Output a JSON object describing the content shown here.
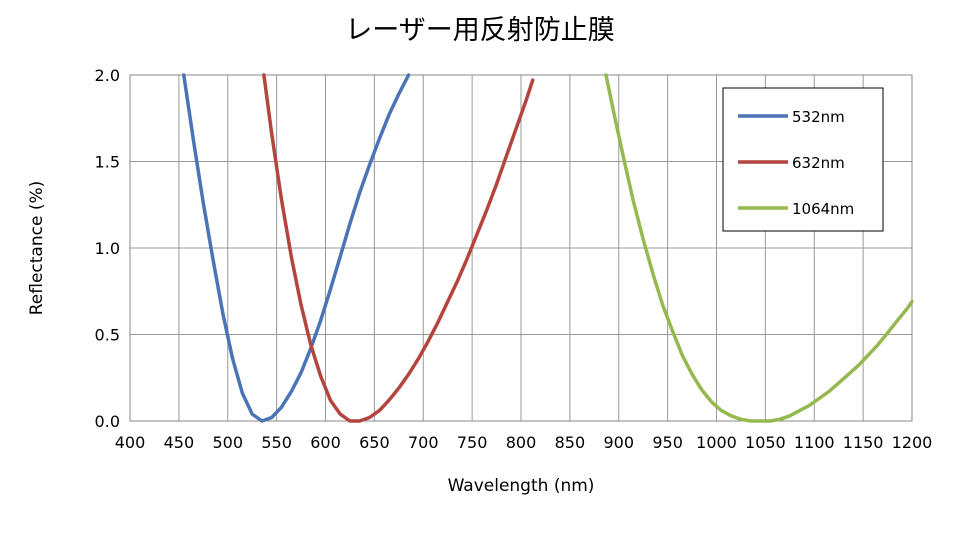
{
  "chart_data": {
    "type": "line",
    "title": "レーザー用反射防止膜",
    "xlabel": "Wavelength (nm)",
    "ylabel": "Reflectance (%)",
    "xlim": [
      400,
      1200
    ],
    "ylim": [
      0,
      2.0
    ],
    "x_ticks": [
      400,
      450,
      500,
      550,
      600,
      650,
      700,
      750,
      800,
      850,
      900,
      950,
      1000,
      1050,
      1100,
      1150,
      1200
    ],
    "x_tick_labels": [
      "400",
      "450",
      "500",
      "550",
      "600",
      "650",
      "700",
      "750",
      "800",
      "850",
      "900",
      "950",
      "1000",
      "1050",
      "1100",
      "1150",
      "1200"
    ],
    "y_ticks": [
      0,
      0.5,
      1.0,
      1.5,
      2.0
    ],
    "y_tick_labels": [
      "0.0",
      "0.5",
      "1.0",
      "1.5",
      "2.0"
    ],
    "grid": true,
    "legend_position": "top-right",
    "series": [
      {
        "name": "532nm",
        "color": "#4a74b5",
        "x": [
          455,
          465,
          475,
          485,
          495,
          505,
          515,
          525,
          535,
          545,
          555,
          565,
          575,
          585,
          595,
          605,
          615,
          625,
          635,
          645,
          655,
          665,
          675,
          685
        ],
        "y": [
          2.0,
          1.62,
          1.26,
          0.93,
          0.62,
          0.36,
          0.16,
          0.04,
          0.0,
          0.02,
          0.08,
          0.17,
          0.28,
          0.42,
          0.58,
          0.76,
          0.95,
          1.14,
          1.32,
          1.48,
          1.63,
          1.77,
          1.89,
          2.0
        ]
      },
      {
        "name": "632nm",
        "color": "#b4443e",
        "x": [
          537,
          545,
          555,
          565,
          575,
          585,
          595,
          605,
          615,
          625,
          635,
          645,
          655,
          665,
          675,
          685,
          695,
          705,
          715,
          725,
          735,
          745,
          755,
          765,
          775,
          785,
          795,
          805,
          812
        ],
        "y": [
          2.0,
          1.66,
          1.28,
          0.95,
          0.67,
          0.44,
          0.26,
          0.12,
          0.04,
          0.0,
          0.0,
          0.02,
          0.06,
          0.12,
          0.19,
          0.27,
          0.36,
          0.46,
          0.57,
          0.69,
          0.81,
          0.94,
          1.08,
          1.22,
          1.37,
          1.53,
          1.69,
          1.85,
          1.97
        ]
      },
      {
        "name": "1064nm",
        "color": "#96b850",
        "x": [
          887,
          895,
          905,
          915,
          925,
          935,
          945,
          955,
          965,
          975,
          985,
          995,
          1005,
          1015,
          1025,
          1035,
          1045,
          1055,
          1065,
          1075,
          1085,
          1095,
          1105,
          1115,
          1125,
          1135,
          1145,
          1155,
          1165,
          1175,
          1185,
          1195,
          1200
        ],
        "y": [
          2.0,
          1.78,
          1.52,
          1.27,
          1.05,
          0.85,
          0.67,
          0.52,
          0.38,
          0.27,
          0.18,
          0.11,
          0.06,
          0.03,
          0.01,
          0.0,
          0.0,
          0.0,
          0.01,
          0.03,
          0.06,
          0.09,
          0.13,
          0.17,
          0.22,
          0.27,
          0.32,
          0.38,
          0.44,
          0.51,
          0.58,
          0.65,
          0.69
        ]
      }
    ]
  }
}
